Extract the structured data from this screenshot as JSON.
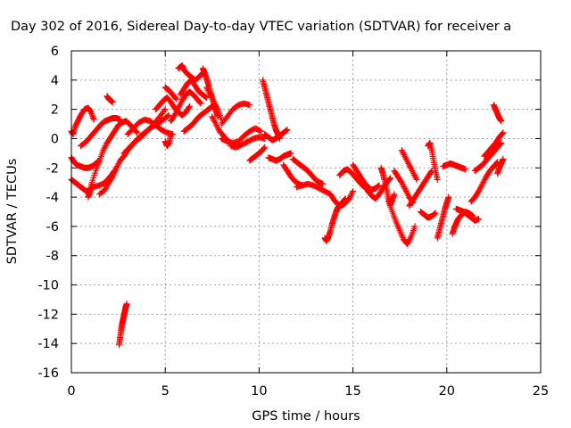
{
  "chart_data": {
    "type": "scatter",
    "title": "Day 302 of 2016, Sidereal Day-to-day VTEC variation (SDTVAR) for receiver a",
    "xlabel": "GPS time / hours",
    "ylabel": "SDTVAR / TECUs",
    "xlim": [
      0,
      25
    ],
    "ylim": [
      -16,
      6
    ],
    "xticks": [
      0,
      5,
      10,
      15,
      20,
      25
    ],
    "yticks": [
      -16,
      -14,
      -12,
      -10,
      -8,
      -6,
      -4,
      -2,
      0,
      2,
      4,
      6
    ],
    "grid": true,
    "marker": "plus",
    "color": "#ff0000",
    "series": [
      {
        "x": [
          0.0,
          0.2,
          0.4,
          0.6,
          0.8,
          1.0,
          1.2,
          1.5,
          1.8,
          2.0,
          2.2,
          2.3
        ],
        "y": [
          -2.8,
          -3.0,
          -3.2,
          -3.4,
          -3.6,
          -3.5,
          -3.3,
          -3.2,
          -3.0,
          -2.7,
          -2.4,
          -2.2
        ]
      },
      {
        "x": [
          0.0,
          0.1,
          0.2,
          0.35,
          0.5,
          0.7,
          0.9,
          1.05,
          1.2
        ],
        "y": [
          0.5,
          0.3,
          0.8,
          1.2,
          1.6,
          2.0,
          2.1,
          1.8,
          1.3
        ]
      },
      {
        "x": [
          0.0,
          0.15,
          0.3,
          0.5,
          0.7,
          0.9,
          1.1,
          1.3,
          1.5
        ],
        "y": [
          -1.3,
          -1.6,
          -1.8,
          -1.9,
          -2.0,
          -2.0,
          -1.9,
          -1.7,
          -1.5
        ]
      },
      {
        "x": [
          0.9,
          1.0,
          1.1,
          1.3,
          1.5,
          1.7,
          1.9,
          2.1,
          2.3,
          2.5,
          2.7,
          2.9,
          3.1,
          3.3,
          3.5
        ],
        "y": [
          -4.0,
          -3.6,
          -3.0,
          -2.2,
          -1.5,
          -0.8,
          -0.3,
          0.1,
          0.5,
          0.9,
          1.1,
          1.2,
          1.0,
          0.7,
          0.4
        ]
      },
      {
        "x": [
          0.5,
          0.8,
          1.0,
          1.2,
          1.4,
          1.6,
          1.8,
          2.0,
          2.2,
          2.4,
          2.6
        ],
        "y": [
          -0.5,
          -0.2,
          0.1,
          0.4,
          0.7,
          1.0,
          1.2,
          1.3,
          1.4,
          1.4,
          1.3
        ]
      },
      {
        "x": [
          1.5,
          1.8,
          2.0,
          2.2,
          2.4,
          2.6,
          2.8,
          3.0,
          3.2,
          3.4,
          3.6
        ],
        "y": [
          -3.8,
          -3.5,
          -3.0,
          -2.6,
          -2.0,
          -1.5,
          -1.2,
          -0.8,
          -0.5,
          -0.2,
          0.0
        ]
      },
      {
        "x": [
          1.9,
          2.0,
          2.1,
          2.2
        ],
        "y": [
          2.9,
          2.7,
          2.6,
          2.5
        ]
      },
      {
        "x": [
          2.55,
          2.6,
          2.65,
          2.7,
          2.75,
          2.8,
          2.85,
          2.9,
          2.95
        ],
        "y": [
          -14.1,
          -13.6,
          -13.1,
          -12.7,
          -12.4,
          -12.1,
          -11.8,
          -11.5,
          -11.3
        ]
      },
      {
        "x": [
          2.8,
          3.1,
          3.4,
          3.7,
          4.0,
          4.3,
          4.6,
          4.9,
          5.2
        ],
        "y": [
          -1.0,
          -0.6,
          -0.2,
          0.2,
          0.5,
          0.8,
          1.0,
          1.3,
          1.6
        ]
      },
      {
        "x": [
          3.0,
          3.3,
          3.6,
          3.9,
          4.2,
          4.5,
          4.8,
          5.1,
          5.4
        ],
        "y": [
          0.3,
          0.7,
          1.1,
          1.3,
          1.2,
          0.9,
          0.6,
          0.4,
          0.3
        ]
      },
      {
        "x": [
          3.5,
          3.8,
          4.1,
          4.4,
          4.7,
          5.0
        ],
        "y": [
          -0.1,
          0.2,
          0.6,
          1.0,
          1.5,
          2.0
        ]
      },
      {
        "x": [
          4.5,
          4.7,
          4.9,
          5.1,
          5.3,
          5.5,
          5.7,
          5.9,
          6.1,
          6.3
        ],
        "y": [
          2.0,
          2.3,
          2.6,
          2.8,
          2.5,
          2.1,
          1.8,
          1.6,
          1.8,
          2.2
        ]
      },
      {
        "x": [
          5.0,
          5.2,
          5.4,
          5.6
        ],
        "y": [
          3.5,
          3.3,
          3.0,
          2.7
        ]
      },
      {
        "x": [
          5.0,
          5.1,
          5.2,
          5.3
        ],
        "y": [
          -0.2,
          -0.5,
          -0.3,
          0.2
        ]
      },
      {
        "x": [
          5.3,
          5.5,
          5.7,
          5.9,
          6.1,
          6.3,
          6.5,
          6.7,
          6.9
        ],
        "y": [
          1.2,
          1.6,
          2.1,
          2.6,
          3.0,
          3.2,
          3.0,
          2.7,
          2.4
        ]
      },
      {
        "x": [
          5.7,
          5.9,
          6.0,
          6.2,
          6.4,
          6.6,
          6.8,
          7.0
        ],
        "y": [
          4.8,
          5.0,
          4.7,
          4.4,
          4.2,
          4.0,
          4.2,
          4.5
        ]
      },
      {
        "x": [
          5.8,
          6.0,
          6.2,
          6.4,
          6.6,
          6.8,
          7.0,
          7.2
        ],
        "y": [
          3.0,
          3.4,
          3.8,
          4.0,
          3.6,
          3.2,
          3.0,
          2.8
        ]
      },
      {
        "x": [
          6.0,
          6.2,
          6.4,
          6.6,
          6.8,
          7.0,
          7.2,
          7.4,
          7.6
        ],
        "y": [
          0.5,
          0.7,
          0.9,
          1.2,
          1.5,
          1.7,
          1.9,
          2.1,
          2.3
        ]
      },
      {
        "x": [
          7.0,
          7.1,
          7.2,
          7.3,
          7.4,
          7.5,
          7.6,
          7.7,
          7.8
        ],
        "y": [
          4.8,
          4.5,
          4.1,
          3.7,
          3.2,
          2.8,
          2.3,
          1.9,
          1.5
        ]
      },
      {
        "x": [
          7.2,
          7.4,
          7.6,
          7.8,
          8.0
        ],
        "y": [
          3.5,
          3.0,
          2.5,
          2.0,
          1.3
        ]
      },
      {
        "x": [
          7.5,
          7.7,
          7.9,
          8.1,
          8.3,
          8.5
        ],
        "y": [
          1.5,
          1.0,
          0.5,
          0.2,
          -0.1,
          -0.3
        ]
      },
      {
        "x": [
          8.0,
          8.3,
          8.6,
          8.9,
          9.2,
          9.5
        ],
        "y": [
          1.0,
          1.5,
          2.0,
          2.3,
          2.4,
          2.3
        ]
      },
      {
        "x": [
          8.0,
          8.3,
          8.6,
          8.9,
          9.2,
          9.5,
          9.8,
          10.1
        ],
        "y": [
          0.0,
          -0.2,
          -0.3,
          -0.2,
          0.2,
          0.5,
          0.7,
          0.5
        ]
      },
      {
        "x": [
          8.5,
          8.8,
          9.1,
          9.4,
          9.7,
          10.0,
          10.3
        ],
        "y": [
          -0.5,
          -0.6,
          -0.4,
          -0.2,
          0.0,
          0.1,
          0.0
        ]
      },
      {
        "x": [
          9.5,
          9.7,
          9.9,
          10.1,
          10.3
        ],
        "y": [
          -1.5,
          -1.3,
          -1.1,
          -0.9,
          -0.6
        ]
      },
      {
        "x": [
          10.2,
          10.3,
          10.4,
          10.5,
          10.6,
          10.7,
          10.8,
          10.9,
          11.0,
          11.1
        ],
        "y": [
          4.0,
          3.5,
          3.0,
          2.5,
          2.0,
          1.5,
          1.0,
          0.6,
          0.3,
          0.0
        ]
      },
      {
        "x": [
          10.3,
          10.5,
          10.7,
          10.9,
          11.1,
          11.3,
          11.5
        ],
        "y": [
          0.3,
          0.1,
          -0.1,
          0.0,
          0.2,
          0.4,
          0.6
        ]
      },
      {
        "x": [
          10.5,
          10.7,
          10.9,
          11.1,
          11.3,
          11.5,
          11.7
        ],
        "y": [
          -1.3,
          -1.4,
          -1.5,
          -1.4,
          -1.2,
          -1.1,
          -1.0
        ]
      },
      {
        "x": [
          11.3,
          11.5,
          11.7,
          11.9,
          12.1,
          12.3
        ],
        "y": [
          -1.8,
          -2.2,
          -2.6,
          -2.9,
          -3.1,
          -3.2
        ]
      },
      {
        "x": [
          11.8,
          12.0,
          12.2,
          12.4,
          12.6,
          12.8,
          13.0,
          13.2,
          13.4
        ],
        "y": [
          -1.4,
          -1.6,
          -1.8,
          -2.0,
          -2.2,
          -2.5,
          -2.8,
          -3.0,
          -3.1
        ]
      },
      {
        "x": [
          12.0,
          12.3,
          12.6,
          12.9,
          13.2,
          13.5,
          13.8
        ],
        "y": [
          -3.3,
          -3.2,
          -3.1,
          -3.2,
          -3.4,
          -3.6,
          -3.8
        ]
      },
      {
        "x": [
          13.5,
          13.6,
          13.7,
          13.8,
          13.9,
          14.0,
          14.1,
          14.2,
          14.4,
          14.6
        ],
        "y": [
          -6.8,
          -7.0,
          -6.7,
          -6.3,
          -5.8,
          -5.4,
          -5.0,
          -4.7,
          -4.4,
          -4.1
        ]
      },
      {
        "x": [
          13.8,
          14.0,
          14.2,
          14.4,
          14.6,
          14.8,
          15.0
        ],
        "y": [
          -3.8,
          -4.2,
          -4.5,
          -4.6,
          -4.4,
          -4.1,
          -3.6
        ]
      },
      {
        "x": [
          14.3,
          14.5,
          14.7,
          14.9,
          15.1,
          15.3,
          15.5,
          15.7,
          15.9
        ],
        "y": [
          -2.5,
          -2.2,
          -2.1,
          -2.3,
          -2.6,
          -2.9,
          -3.2,
          -3.4,
          -3.5
        ]
      },
      {
        "x": [
          15.0,
          15.2,
          15.4,
          15.6,
          15.8,
          16.0,
          16.2,
          16.4
        ],
        "y": [
          -1.8,
          -2.2,
          -2.6,
          -3.0,
          -3.3,
          -3.5,
          -3.4,
          -3.2
        ]
      },
      {
        "x": [
          15.8,
          16.0,
          16.2,
          16.4,
          16.6,
          16.8,
          17.0
        ],
        "y": [
          -3.6,
          -3.9,
          -4.1,
          -3.8,
          -3.4,
          -3.0,
          -2.7
        ]
      },
      {
        "x": [
          16.5,
          16.6,
          16.7,
          16.8,
          16.9,
          17.0,
          17.1,
          17.2
        ],
        "y": [
          -2.0,
          -2.4,
          -2.9,
          -3.5,
          -4.1,
          -4.5,
          -4.2,
          -3.8
        ]
      },
      {
        "x": [
          16.9,
          17.1,
          17.3,
          17.5,
          17.7,
          17.9,
          18.1,
          18.3
        ],
        "y": [
          -4.3,
          -5.0,
          -5.7,
          -6.3,
          -6.9,
          -7.2,
          -6.7,
          -6.0
        ]
      },
      {
        "x": [
          17.2,
          17.4,
          17.6,
          17.8,
          18.0,
          18.2
        ],
        "y": [
          -2.2,
          -2.6,
          -3.0,
          -3.5,
          -4.0,
          -4.4
        ]
      },
      {
        "x": [
          17.6,
          17.8,
          18.0,
          18.2,
          18.4
        ],
        "y": [
          -0.8,
          -1.3,
          -1.8,
          -2.3,
          -2.8
        ]
      },
      {
        "x": [
          18.0,
          18.2,
          18.4,
          18.6,
          18.8,
          19.0,
          19.2
        ],
        "y": [
          -4.6,
          -4.2,
          -3.8,
          -3.4,
          -3.0,
          -2.6,
          -2.2
        ]
      },
      {
        "x": [
          18.6,
          18.8,
          19.0,
          19.2,
          19.4
        ],
        "y": [
          -5.0,
          -5.2,
          -5.4,
          -5.3,
          -5.1
        ]
      },
      {
        "x": [
          19.0,
          19.1,
          19.2,
          19.3,
          19.4,
          19.5
        ],
        "y": [
          -0.5,
          -0.3,
          -0.8,
          -1.5,
          -2.2,
          -2.8
        ]
      },
      {
        "x": [
          19.5,
          19.6,
          19.7,
          19.8,
          19.9,
          20.0,
          20.1
        ],
        "y": [
          -6.8,
          -6.3,
          -5.8,
          -5.3,
          -4.8,
          -4.4,
          -4.0
        ]
      },
      {
        "x": [
          19.8,
          20.0,
          20.2,
          20.4,
          20.6,
          20.8,
          21.0
        ],
        "y": [
          -1.9,
          -1.8,
          -1.7,
          -1.8,
          -1.9,
          -2.0,
          -2.1
        ]
      },
      {
        "x": [
          20.3,
          20.4,
          20.5,
          20.6,
          20.8,
          21.0,
          21.2,
          21.4
        ],
        "y": [
          -6.5,
          -6.1,
          -5.8,
          -5.5,
          -5.2,
          -5.0,
          -5.1,
          -5.3
        ]
      },
      {
        "x": [
          20.5,
          20.7,
          20.9,
          21.1,
          21.3,
          21.5,
          21.7
        ],
        "y": [
          -4.8,
          -4.9,
          -5.0,
          -5.2,
          -5.4,
          -5.6,
          -5.5
        ]
      },
      {
        "x": [
          21.3,
          21.5,
          21.7,
          21.9,
          22.1,
          22.3,
          22.5,
          22.7
        ],
        "y": [
          -4.3,
          -4.0,
          -3.6,
          -3.1,
          -2.6,
          -2.2,
          -1.9,
          -1.6
        ]
      },
      {
        "x": [
          21.5,
          21.7,
          21.9,
          22.1,
          22.3,
          22.5,
          22.7,
          22.9
        ],
        "y": [
          -2.2,
          -2.0,
          -1.8,
          -1.5,
          -1.2,
          -0.9,
          -0.6,
          -0.3
        ]
      },
      {
        "x": [
          22.0,
          22.2,
          22.4,
          22.6,
          22.8,
          23.0
        ],
        "y": [
          -1.2,
          -0.9,
          -0.6,
          -0.3,
          0.1,
          0.4
        ]
      },
      {
        "x": [
          22.5,
          22.6,
          22.7,
          22.8,
          22.9
        ],
        "y": [
          2.3,
          2.0,
          1.7,
          1.4,
          1.2
        ]
      },
      {
        "x": [
          22.7,
          22.8,
          22.9,
          23.0
        ],
        "y": [
          -2.4,
          -2.0,
          -1.7,
          -1.4
        ]
      }
    ]
  }
}
